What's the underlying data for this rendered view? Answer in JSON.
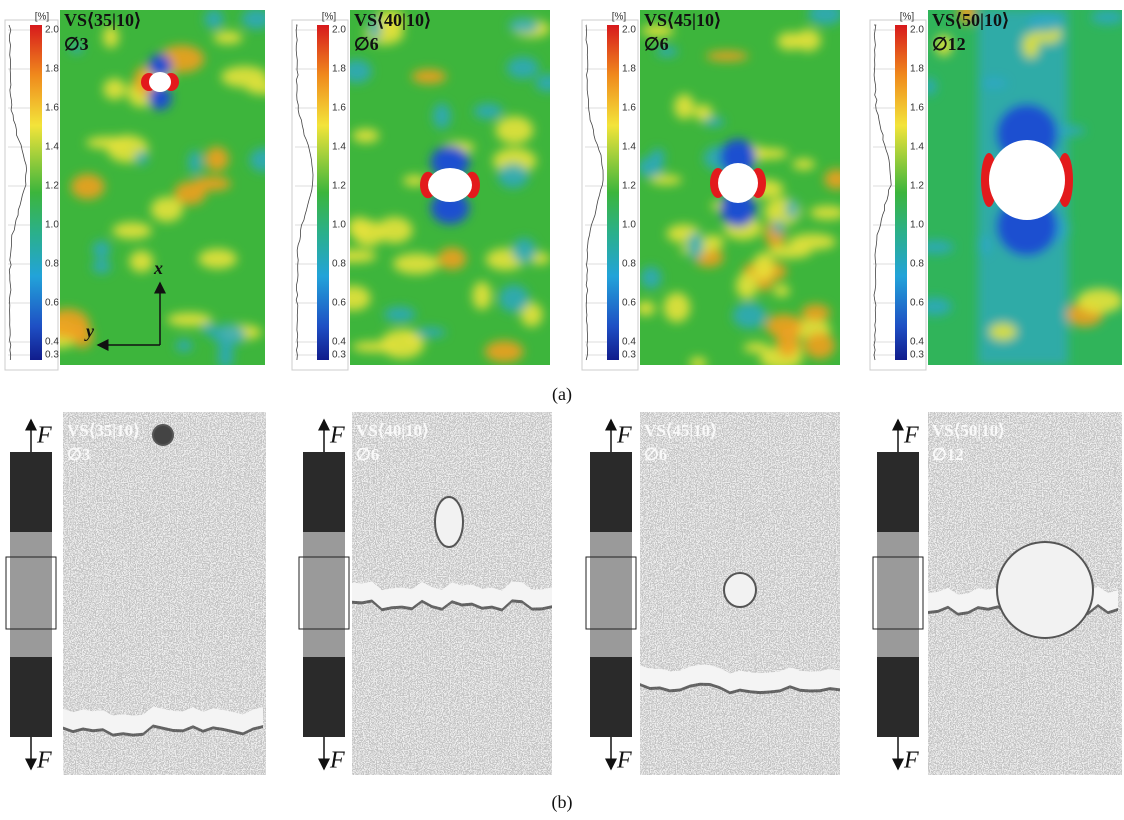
{
  "panel_a": {
    "label": "(a)",
    "unit": "[%]",
    "colorbar_ticks": [
      "2.0",
      "1.8",
      "1.6",
      "1.4",
      "1.2",
      "1.0",
      "0.8",
      "0.6",
      "0.4",
      "0.3"
    ],
    "axes": {
      "x": "x",
      "y": "y"
    },
    "maps": [
      {
        "specimen": "VS⟨35|10⟩",
        "diameter": "∅3"
      },
      {
        "specimen": "VS⟨40|10⟩",
        "diameter": "∅6"
      },
      {
        "specimen": "VS⟨45|10⟩",
        "diameter": "∅6"
      },
      {
        "specimen": "VS⟨50|10⟩",
        "diameter": "∅12"
      }
    ]
  },
  "panel_b": {
    "label": "(b)",
    "force": "F",
    "photos": [
      {
        "specimen": "VS⟨35|10⟩",
        "diameter": "∅3"
      },
      {
        "specimen": "VS⟨40|10⟩",
        "diameter": "∅6"
      },
      {
        "specimen": "VS⟨45|10⟩",
        "diameter": "∅6"
      },
      {
        "specimen": "VS⟨50|10⟩",
        "diameter": "∅12"
      }
    ]
  }
}
